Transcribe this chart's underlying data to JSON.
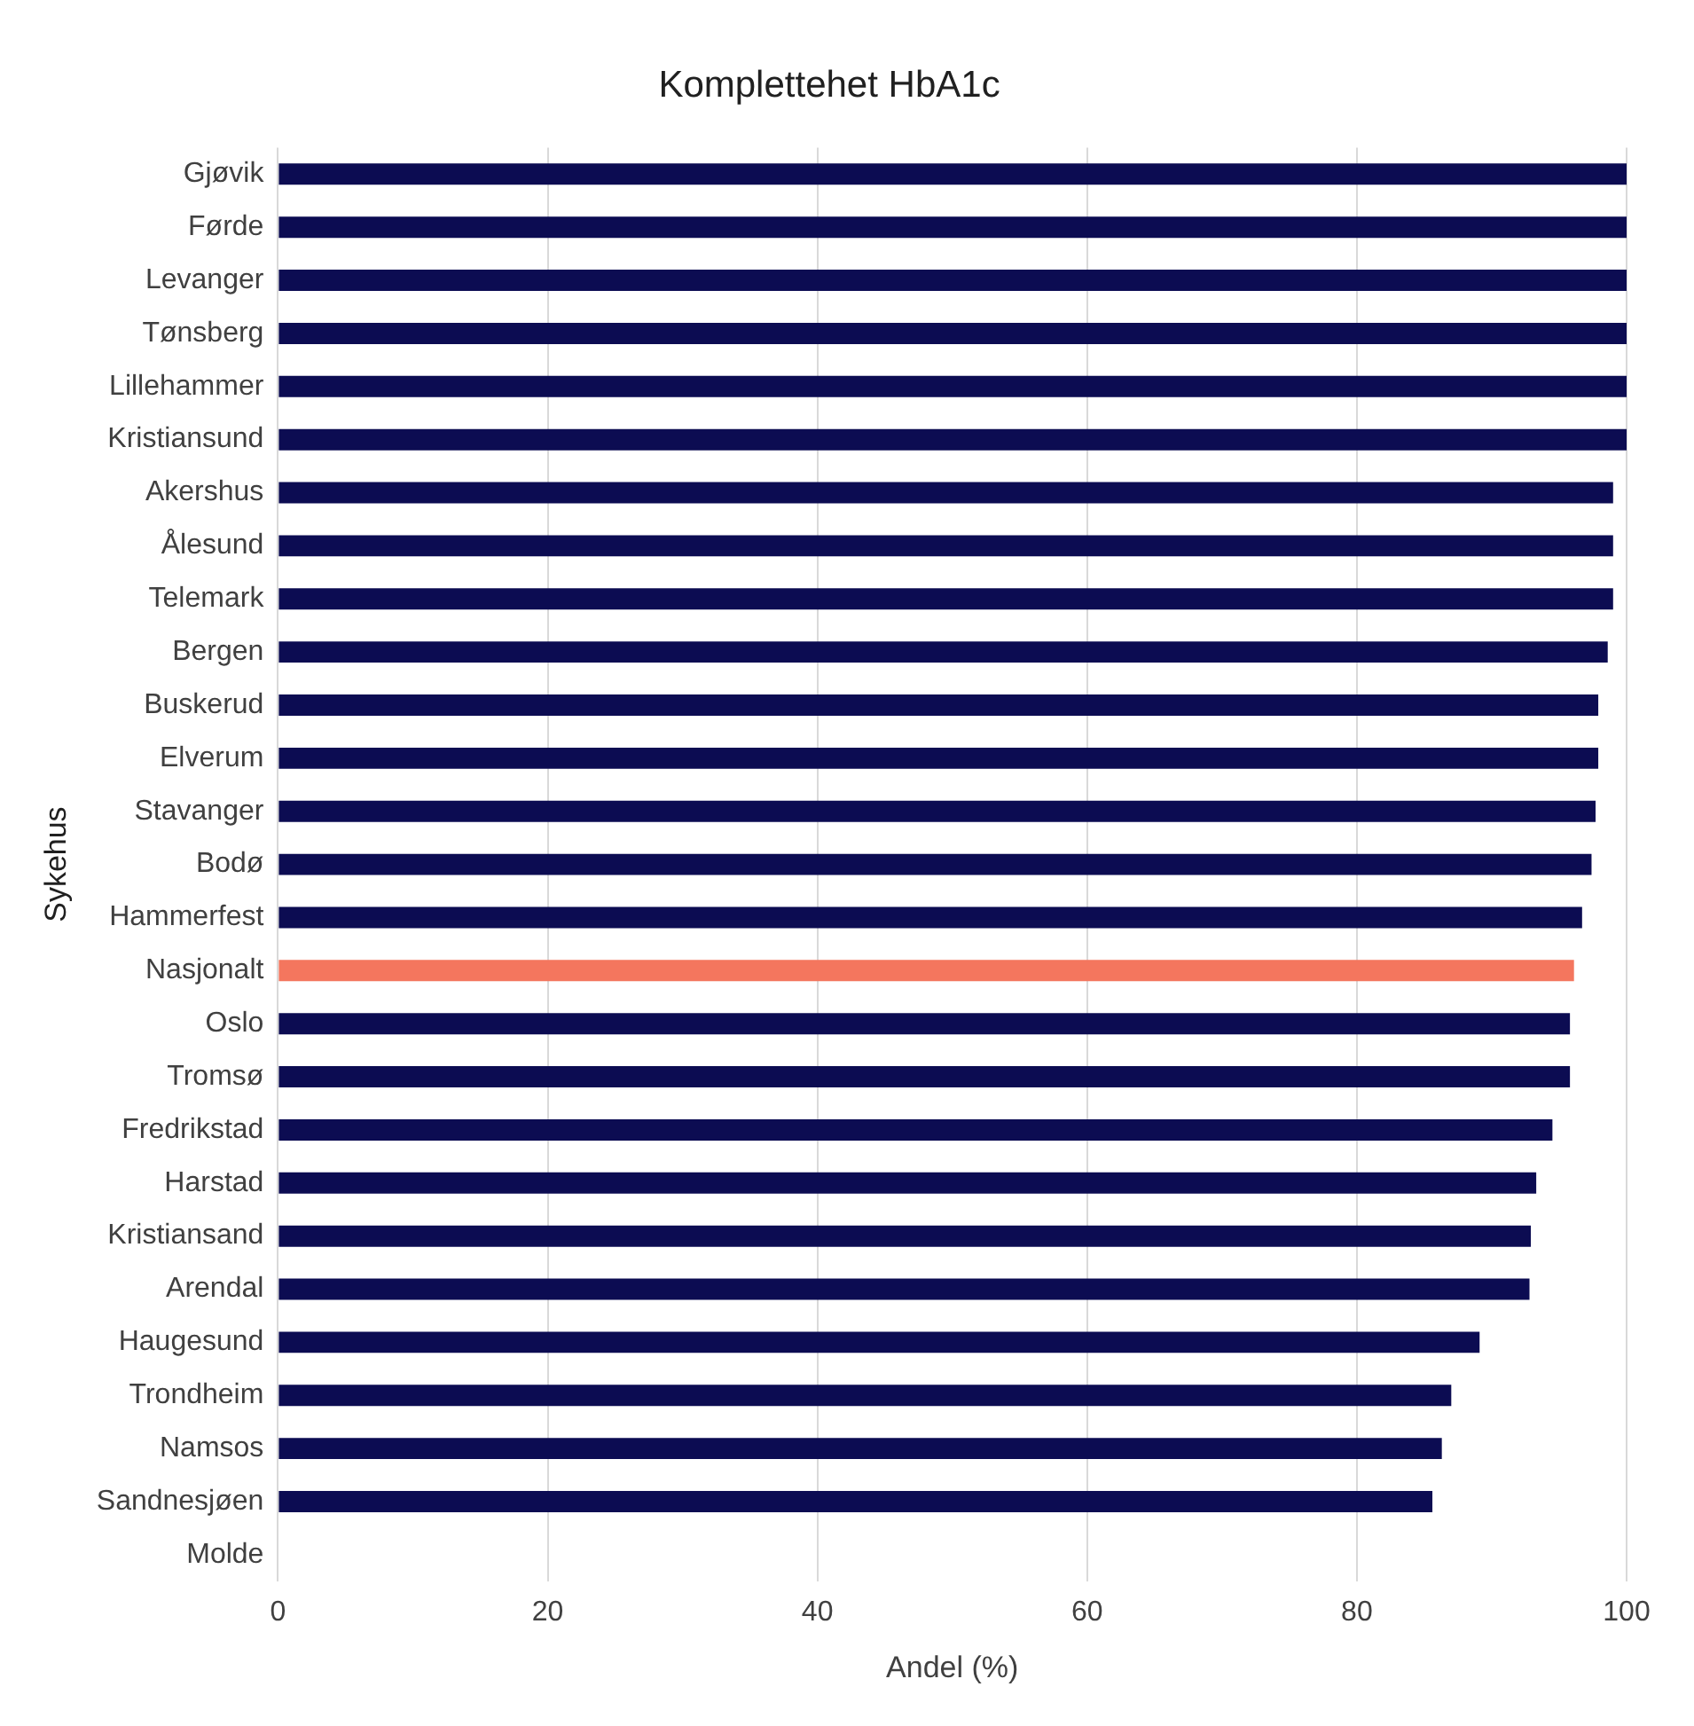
{
  "chart_data": {
    "type": "bar",
    "orientation": "horizontal",
    "title": "Komplettehet HbA1c",
    "xlabel": "Andel (%)",
    "ylabel": "Sykehus",
    "categories": [
      "Gjøvik",
      "Førde",
      "Levanger",
      "Tønsberg",
      "Lillehammer",
      "Kristiansund",
      "Akershus",
      "Ålesund",
      "Telemark",
      "Bergen",
      "Buskerud",
      "Elverum",
      "Stavanger",
      "Bodø",
      "Hammerfest",
      "Nasjonalt",
      "Oslo",
      "Tromsø",
      "Fredrikstad",
      "Harstad",
      "Kristiansand",
      "Arendal",
      "Haugesund",
      "Trondheim",
      "Namsos",
      "Sandnesjøen",
      "Molde"
    ],
    "values": [
      100,
      100,
      100,
      100,
      100,
      100,
      99,
      99,
      99,
      98.6,
      97.9,
      97.9,
      97.7,
      97.4,
      96.7,
      96.1,
      95.8,
      95.8,
      94.5,
      93.3,
      92.9,
      92.8,
      89.1,
      87.0,
      86.3,
      85.6,
      null
    ],
    "colors": [
      "#0c0c52",
      "#0c0c52",
      "#0c0c52",
      "#0c0c52",
      "#0c0c52",
      "#0c0c52",
      "#0c0c52",
      "#0c0c52",
      "#0c0c52",
      "#0c0c52",
      "#0c0c52",
      "#0c0c52",
      "#0c0c52",
      "#0c0c52",
      "#0c0c52",
      "#f4765e",
      "#0c0c52",
      "#0c0c52",
      "#0c0c52",
      "#0c0c52",
      "#0c0c52",
      "#0c0c52",
      "#0c0c52",
      "#0c0c52",
      "#0c0c52",
      "#0c0c52",
      "#0c0c52"
    ],
    "xlim": [
      0,
      100
    ],
    "xticks": [
      0,
      20,
      40,
      60,
      80,
      100
    ],
    "grid": "x",
    "legend": false
  }
}
